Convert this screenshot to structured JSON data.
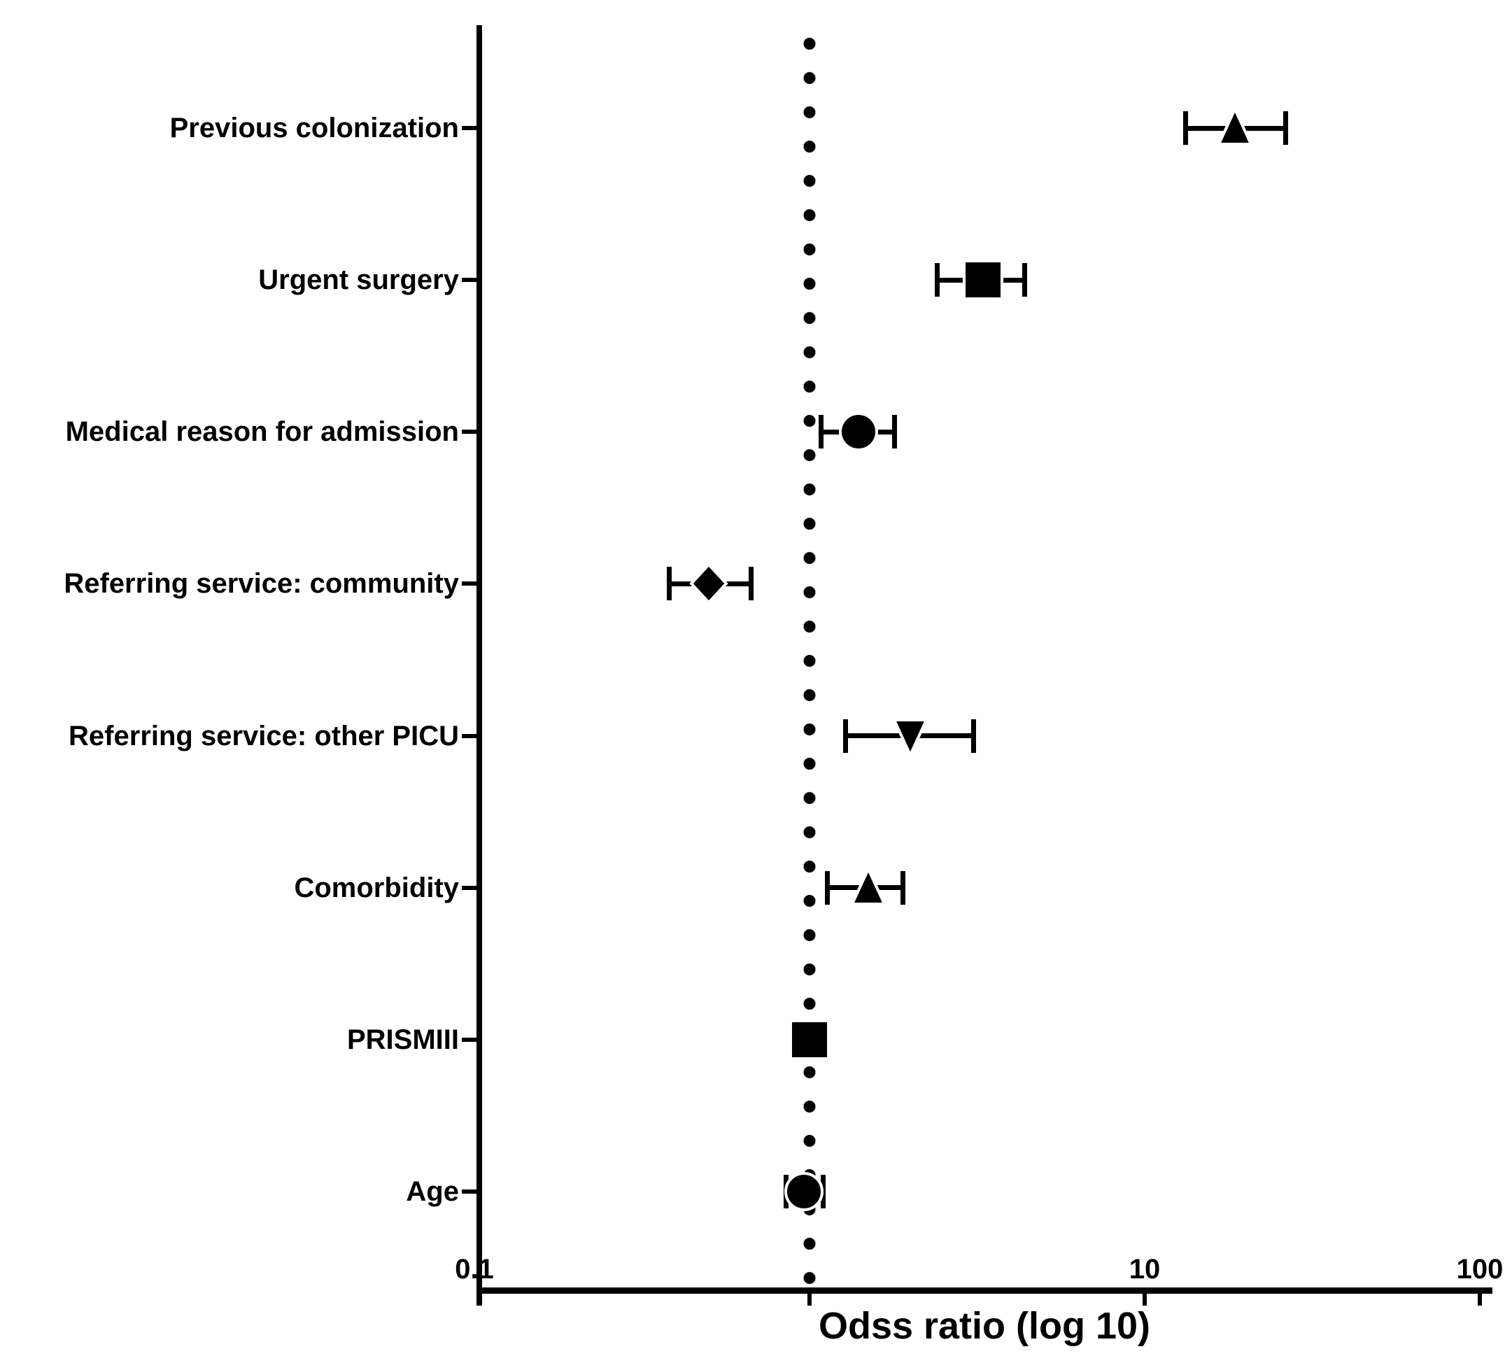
{
  "page": {
    "background": "#ffffff"
  },
  "colors": {
    "marker": "#000000",
    "axis": "#000000",
    "reference_line": "#000000",
    "marker_halo": "#ffffff"
  },
  "chart_data": {
    "type": "scatter",
    "chart_kind": "forest-plot",
    "title": "",
    "xlabel": "Odss ratio (log 10)",
    "ylabel": "",
    "x_scale": "log10",
    "xlim": [
      0.1,
      100
    ],
    "x_tick_labels": [
      {
        "text": "0.1",
        "value": 0.1
      },
      {
        "text": "10",
        "value": 10
      },
      {
        "text": "100",
        "value": 100
      }
    ],
    "x_tick_marks": [
      1,
      10,
      100
    ],
    "reference_line_x": 1,
    "grid": false,
    "legend": "none",
    "rows": [
      {
        "label": "Previous colonization",
        "marker": "triangle-up",
        "odds_ratio": 18.6,
        "ci_low": 13.2,
        "ci_high": 26.4
      },
      {
        "label": "Urgent surgery",
        "marker": "square",
        "odds_ratio": 3.3,
        "ci_low": 2.4,
        "ci_high": 4.4
      },
      {
        "label": "Medical reason for admission",
        "marker": "circle",
        "odds_ratio": 1.4,
        "ci_low": 1.08,
        "ci_high": 1.8
      },
      {
        "label": "Referring service: community",
        "marker": "diamond",
        "odds_ratio": 0.5,
        "ci_low": 0.38,
        "ci_high": 0.67
      },
      {
        "label": "Referring service: other PICU",
        "marker": "triangle-down",
        "odds_ratio": 2.0,
        "ci_low": 1.28,
        "ci_high": 3.1
      },
      {
        "label": "Comorbidity",
        "marker": "triangle-up",
        "odds_ratio": 1.5,
        "ci_low": 1.13,
        "ci_high": 1.9
      },
      {
        "label": "PRISMIII",
        "marker": "square",
        "odds_ratio": 1.0,
        "ci_low": 0.95,
        "ci_high": 1.08
      },
      {
        "label": "Age",
        "marker": "circle",
        "odds_ratio": 0.96,
        "ci_low": 0.85,
        "ci_high": 1.1
      }
    ]
  }
}
